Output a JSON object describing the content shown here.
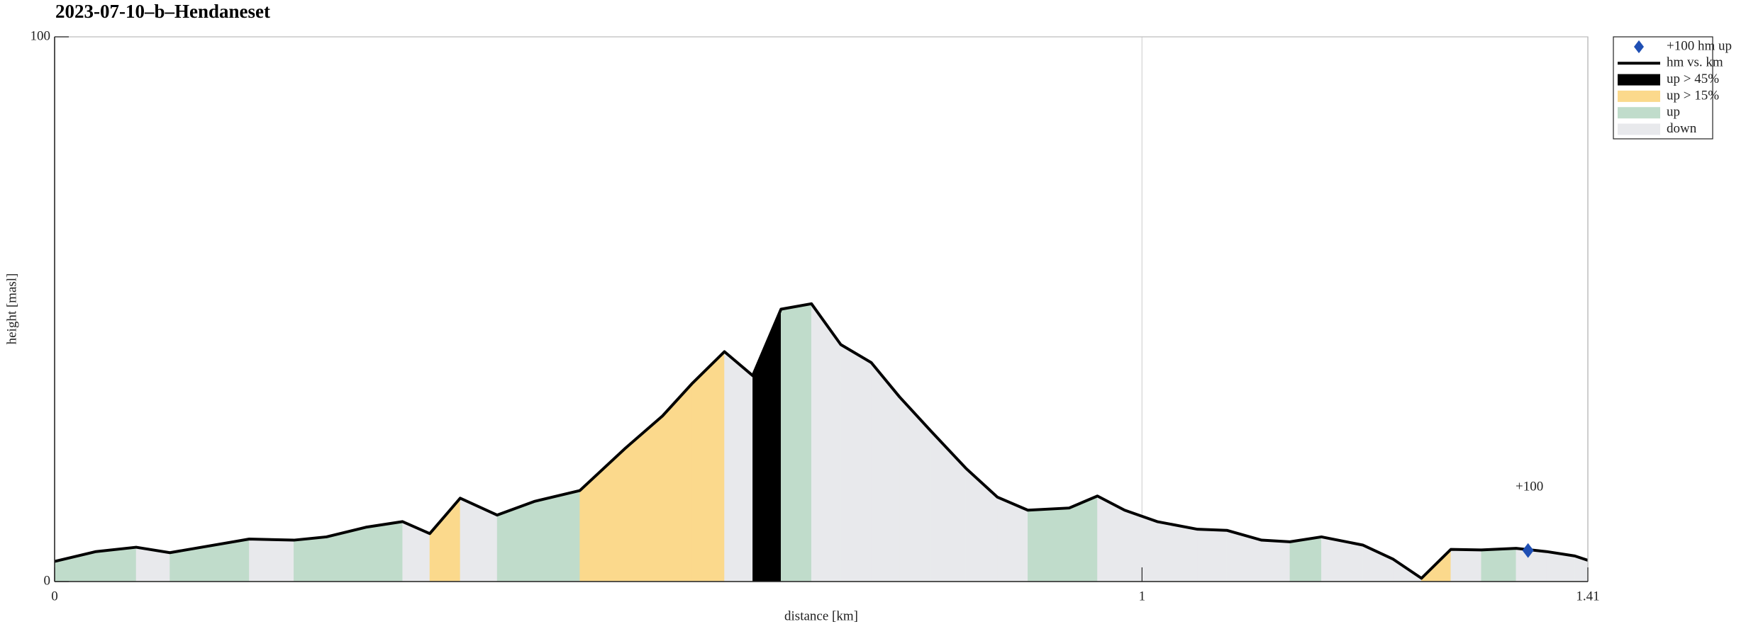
{
  "chart_data": {
    "type": "line",
    "title": "2023-07-10–b–Hendaneset",
    "xlabel": "distance [km]",
    "ylabel": "height [masl]",
    "x": [
      0,
      0.038,
      0.075,
      0.106,
      0.179,
      0.22,
      0.25,
      0.287,
      0.32,
      0.345,
      0.373,
      0.407,
      0.441,
      0.483,
      0.525,
      0.559,
      0.586,
      0.616,
      0.642,
      0.668,
      0.696,
      0.723,
      0.751,
      0.777,
      0.806,
      0.838,
      0.867,
      0.895,
      0.933,
      0.959,
      0.984,
      1.014,
      1.051,
      1.078,
      1.11,
      1.136,
      1.165,
      1.203,
      1.231,
      1.257,
      1.284,
      1.312,
      1.344,
      1.372,
      1.398,
      1.41
    ],
    "series": [
      {
        "name": "hm vs. km",
        "color": "#000000",
        "values": [
          3.7,
          5.5,
          6.3,
          5.3,
          7.8,
          7.6,
          8.2,
          10.0,
          11.0,
          8.8,
          15.3,
          12.2,
          14.7,
          16.7,
          24.5,
          30.4,
          36.3,
          42.2,
          37.8,
          50.0,
          51.0,
          43.5,
          40.2,
          33.9,
          27.6,
          20.8,
          15.5,
          13.1,
          13.5,
          15.7,
          13.1,
          11.0,
          9.6,
          9.4,
          7.6,
          7.3,
          8.2,
          6.7,
          4.1,
          0.6,
          5.9,
          5.8,
          6.1,
          5.5,
          4.7,
          3.9
        ]
      }
    ],
    "fill_classes": [
      {
        "name": "up > 45%",
        "color": "#000000",
        "min_grade": 45
      },
      {
        "name": "up > 15%",
        "color": "#fbd98c",
        "min_grade": 15
      },
      {
        "name": "up",
        "color": "#c0dccb",
        "min_grade": 0
      },
      {
        "name": "down",
        "color": "#e8e9ec"
      }
    ],
    "markers": {
      "name": "+100 hm up",
      "color": "#1f4fb4",
      "x": [
        1.355
      ],
      "values": [
        5.7
      ],
      "labels": [
        "+100"
      ]
    },
    "xlim": [
      0,
      1.41
    ],
    "ylim": [
      0,
      100
    ],
    "xticks": [
      0,
      1,
      1.41
    ],
    "yticks": [
      0,
      100
    ],
    "grid": true
  }
}
